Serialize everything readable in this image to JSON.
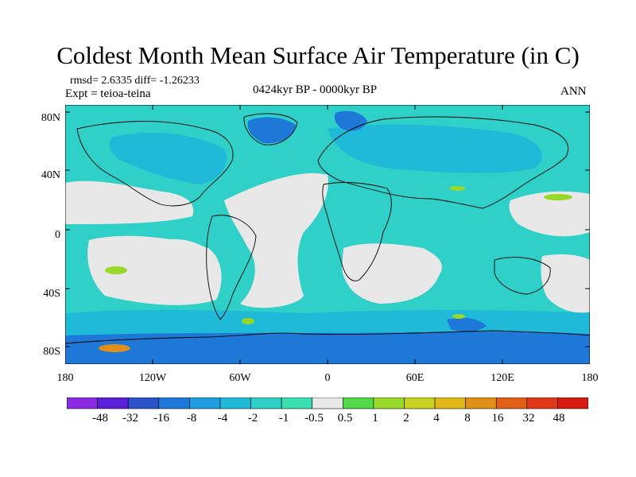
{
  "title": "Coldest Month Mean Surface Air Temperature (in C)",
  "stats": "rmsd= 2.6335 diff= -1.26233",
  "expt": "Expt = teioa-teina",
  "period": "0424kyr BP - 0000kyr BP",
  "season": "ANN",
  "lat_labels": [
    "80N",
    "40N",
    "0",
    "40S",
    "80S"
  ],
  "lon_labels": [
    "180",
    "120W",
    "60W",
    "0",
    "60E",
    "120E",
    "180"
  ],
  "colorbar": {
    "labels": [
      "-48",
      "-32",
      "-16",
      "-8",
      "-4",
      "-2",
      "-1",
      "-0.5",
      "0.5",
      "1",
      "2",
      "4",
      "8",
      "16",
      "32",
      "48"
    ],
    "colors": [
      "#8a2be2",
      "#5a20d8",
      "#2a52c9",
      "#1e78d8",
      "#1f9ee0",
      "#1fbad8",
      "#2fd0c8",
      "#3be0b0",
      "#e8e8e8",
      "#52d848",
      "#98d828",
      "#c8d020",
      "#e0b818",
      "#e09018",
      "#e06018",
      "#e03818",
      "#d81a10"
    ]
  },
  "map": {
    "ocean_color": "#2fd0c8",
    "neutral_color": "#e8e8e8",
    "cool_color": "#1fbad8",
    "cold_color": "#1e78d8",
    "warm_color": "#98d828",
    "hot_color": "#e09018"
  }
}
